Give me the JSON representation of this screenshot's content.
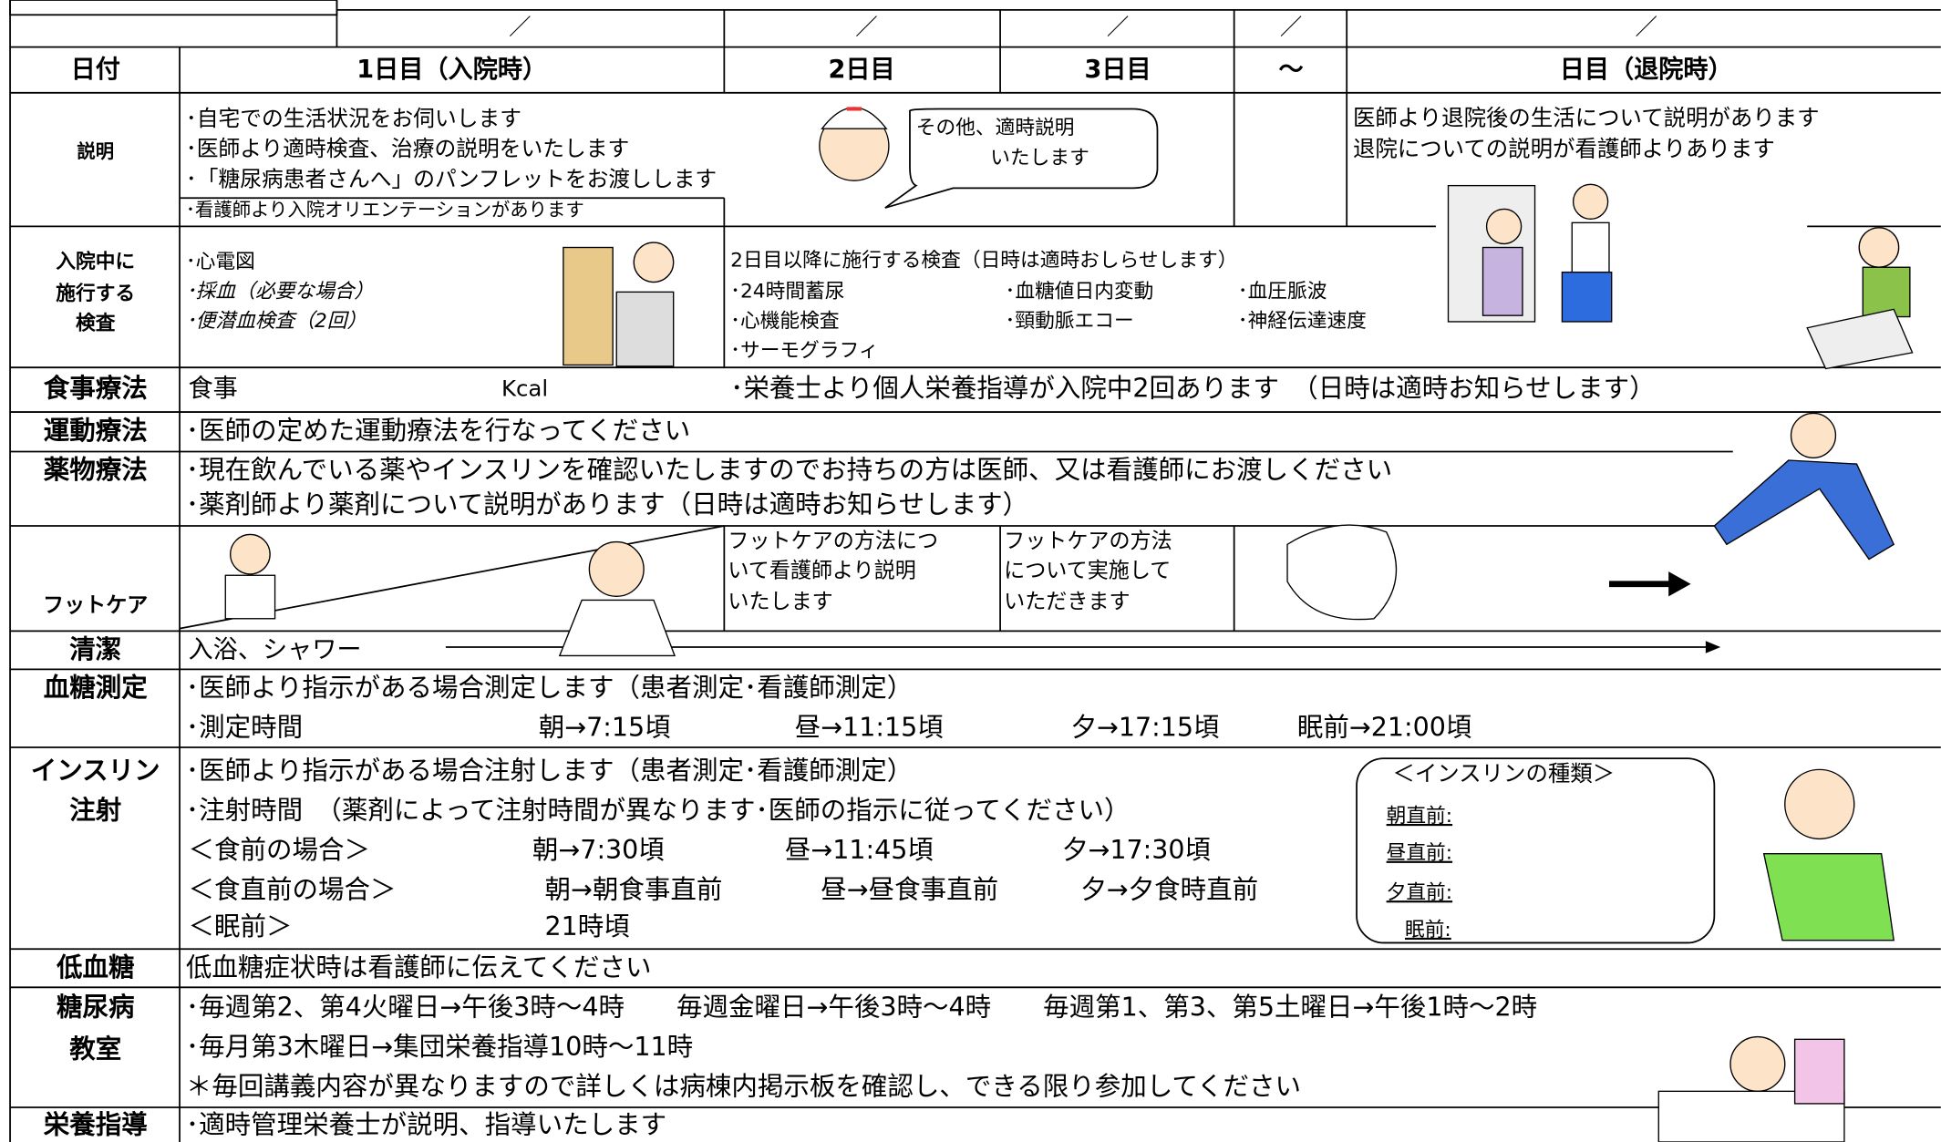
{
  "header": {
    "date_slashes": [
      "／",
      "／",
      "／",
      "／",
      "／"
    ],
    "date_label": "日付",
    "days": [
      "1日目（入院時）",
      "2日目",
      "3日目",
      "～",
      "日目（退院時）"
    ]
  },
  "rows": [
    {
      "label": [
        "説明"
      ],
      "lines": [
        "･自宅での生活状況をお伺いします",
        "･医師より適時検査、治療の説明をいたします",
        "･「糖尿病患者さんへ」のパンフレットをお渡しします",
        "･看護師より入院オリエンテーションがあります"
      ],
      "bubble": [
        "その他、適時説明",
        "いたします"
      ],
      "discharge": [
        "医師より退院後の生活について説明があります",
        "退院についての説明が看護師よりあります"
      ]
    },
    {
      "label": [
        "入院中に",
        "施行する",
        "検査"
      ],
      "lines": [
        "･心電図",
        "･採血（必要な場合）",
        "･便潜血検査（2回）"
      ],
      "intro": "2日目以降に施行する検査（日時は適時おしらせします）",
      "tests": [
        "･24時間蓄尿",
        "･血糖値日内変動",
        "･血圧脈波",
        "･心機能検査",
        "･頸動脈エコー",
        "･神経伝達速度",
        "･サーモグラフィ"
      ]
    },
    {
      "label": [
        "食事療法"
      ],
      "meal": "食事",
      "kcal": "Kcal",
      "note": "･栄養士より個人栄養指導が入院中2回あります　（日時は適時お知らせします）"
    },
    {
      "label": [
        "運動療法"
      ],
      "lines": [
        "･医師の定めた運動療法を行なってください"
      ]
    },
    {
      "label": [
        "薬物療法"
      ],
      "lines": [
        "･現在飲んでいる薬やインスリンを確認いたしますのでお持ちの方は医師、又は看護師にお渡しください",
        "･薬剤師より薬剤について説明があります（日時は適時お知らせします）"
      ]
    },
    {
      "label": [
        "フットケア"
      ],
      "day2": [
        "フットケアの方法につ",
        "いて看護師より説明",
        "いたします"
      ],
      "day3": [
        "フットケアの方法",
        "について実施して",
        "いただきます"
      ]
    },
    {
      "label": [
        "清潔"
      ],
      "lines": [
        "入浴、シャワー"
      ]
    },
    {
      "label": [
        "血糖測定"
      ],
      "lines": [
        "･医師より指示がある場合測定します（患者測定･看護師測定）"
      ],
      "time_label": "･測定時間",
      "times": [
        "朝→7:15頃",
        "昼→11:15頃",
        "夕→17:15頃",
        "眠前→21:00頃"
      ]
    },
    {
      "label": [
        "インスリン",
        "注射"
      ],
      "lines": [
        "･医師より指示がある場合注射します（患者測定･看護師測定）",
        "･注射時間　（薬剤によって注射時間が異なります･医師の指示に従ってください）"
      ],
      "schedule": [
        [
          "＜食前の場合＞",
          "朝→7:30頃",
          "昼→11:45頃",
          "夕→17:30頃"
        ],
        [
          "＜食直前の場合＞",
          "朝→朝食事直前",
          "昼→昼食事直前",
          "夕→夕食時直前"
        ],
        [
          "＜眠前＞",
          "21時頃"
        ]
      ],
      "insulin_types": {
        "title": "＜インスリンの種類＞",
        "items": [
          "朝直前:",
          "昼直前:",
          "夕直前:",
          "眠前:"
        ]
      }
    },
    {
      "label": [
        "低血糖"
      ],
      "lines": [
        "低血糖症状時は看護師に伝えてください"
      ]
    },
    {
      "label": [
        "糖尿病",
        "教室"
      ],
      "lines": [
        "･毎週第2、第4火曜日→午後3時～4時　　毎週金曜日→午後3時～4時　　毎週第1、第3、第5土曜日→午後1時～2時",
        "･毎月第3木曜日→集団栄養指導10時～11時",
        "＊毎回講義内容が異なりますので詳しくは病棟内掲示板を確認し、できる限り参加してください"
      ]
    },
    {
      "label": [
        "栄養指導"
      ],
      "lines": [
        "･適時管理栄養士が説明、指導いたします"
      ]
    }
  ]
}
